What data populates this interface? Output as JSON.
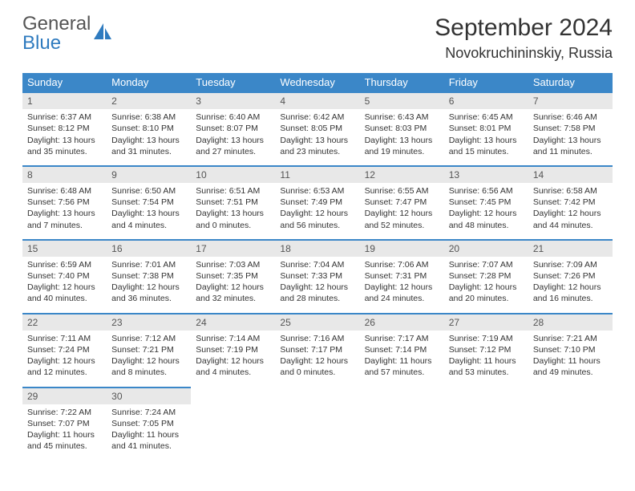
{
  "brand": {
    "line1": "General",
    "line2": "Blue"
  },
  "title": "September 2024",
  "location": "Novokruchininskiy, Russia",
  "colors": {
    "header_bg": "#3b87c8",
    "header_text": "#ffffff",
    "daynum_bg": "#e8e8e8",
    "rule": "#3b87c8",
    "brand_blue": "#2f7bbf"
  },
  "weekdays": [
    "Sunday",
    "Monday",
    "Tuesday",
    "Wednesday",
    "Thursday",
    "Friday",
    "Saturday"
  ],
  "weeks": [
    [
      {
        "n": "1",
        "sunrise": "Sunrise: 6:37 AM",
        "sunset": "Sunset: 8:12 PM",
        "day": "Daylight: 13 hours and 35 minutes."
      },
      {
        "n": "2",
        "sunrise": "Sunrise: 6:38 AM",
        "sunset": "Sunset: 8:10 PM",
        "day": "Daylight: 13 hours and 31 minutes."
      },
      {
        "n": "3",
        "sunrise": "Sunrise: 6:40 AM",
        "sunset": "Sunset: 8:07 PM",
        "day": "Daylight: 13 hours and 27 minutes."
      },
      {
        "n": "4",
        "sunrise": "Sunrise: 6:42 AM",
        "sunset": "Sunset: 8:05 PM",
        "day": "Daylight: 13 hours and 23 minutes."
      },
      {
        "n": "5",
        "sunrise": "Sunrise: 6:43 AM",
        "sunset": "Sunset: 8:03 PM",
        "day": "Daylight: 13 hours and 19 minutes."
      },
      {
        "n": "6",
        "sunrise": "Sunrise: 6:45 AM",
        "sunset": "Sunset: 8:01 PM",
        "day": "Daylight: 13 hours and 15 minutes."
      },
      {
        "n": "7",
        "sunrise": "Sunrise: 6:46 AM",
        "sunset": "Sunset: 7:58 PM",
        "day": "Daylight: 13 hours and 11 minutes."
      }
    ],
    [
      {
        "n": "8",
        "sunrise": "Sunrise: 6:48 AM",
        "sunset": "Sunset: 7:56 PM",
        "day": "Daylight: 13 hours and 7 minutes."
      },
      {
        "n": "9",
        "sunrise": "Sunrise: 6:50 AM",
        "sunset": "Sunset: 7:54 PM",
        "day": "Daylight: 13 hours and 4 minutes."
      },
      {
        "n": "10",
        "sunrise": "Sunrise: 6:51 AM",
        "sunset": "Sunset: 7:51 PM",
        "day": "Daylight: 13 hours and 0 minutes."
      },
      {
        "n": "11",
        "sunrise": "Sunrise: 6:53 AM",
        "sunset": "Sunset: 7:49 PM",
        "day": "Daylight: 12 hours and 56 minutes."
      },
      {
        "n": "12",
        "sunrise": "Sunrise: 6:55 AM",
        "sunset": "Sunset: 7:47 PM",
        "day": "Daylight: 12 hours and 52 minutes."
      },
      {
        "n": "13",
        "sunrise": "Sunrise: 6:56 AM",
        "sunset": "Sunset: 7:45 PM",
        "day": "Daylight: 12 hours and 48 minutes."
      },
      {
        "n": "14",
        "sunrise": "Sunrise: 6:58 AM",
        "sunset": "Sunset: 7:42 PM",
        "day": "Daylight: 12 hours and 44 minutes."
      }
    ],
    [
      {
        "n": "15",
        "sunrise": "Sunrise: 6:59 AM",
        "sunset": "Sunset: 7:40 PM",
        "day": "Daylight: 12 hours and 40 minutes."
      },
      {
        "n": "16",
        "sunrise": "Sunrise: 7:01 AM",
        "sunset": "Sunset: 7:38 PM",
        "day": "Daylight: 12 hours and 36 minutes."
      },
      {
        "n": "17",
        "sunrise": "Sunrise: 7:03 AM",
        "sunset": "Sunset: 7:35 PM",
        "day": "Daylight: 12 hours and 32 minutes."
      },
      {
        "n": "18",
        "sunrise": "Sunrise: 7:04 AM",
        "sunset": "Sunset: 7:33 PM",
        "day": "Daylight: 12 hours and 28 minutes."
      },
      {
        "n": "19",
        "sunrise": "Sunrise: 7:06 AM",
        "sunset": "Sunset: 7:31 PM",
        "day": "Daylight: 12 hours and 24 minutes."
      },
      {
        "n": "20",
        "sunrise": "Sunrise: 7:07 AM",
        "sunset": "Sunset: 7:28 PM",
        "day": "Daylight: 12 hours and 20 minutes."
      },
      {
        "n": "21",
        "sunrise": "Sunrise: 7:09 AM",
        "sunset": "Sunset: 7:26 PM",
        "day": "Daylight: 12 hours and 16 minutes."
      }
    ],
    [
      {
        "n": "22",
        "sunrise": "Sunrise: 7:11 AM",
        "sunset": "Sunset: 7:24 PM",
        "day": "Daylight: 12 hours and 12 minutes."
      },
      {
        "n": "23",
        "sunrise": "Sunrise: 7:12 AM",
        "sunset": "Sunset: 7:21 PM",
        "day": "Daylight: 12 hours and 8 minutes."
      },
      {
        "n": "24",
        "sunrise": "Sunrise: 7:14 AM",
        "sunset": "Sunset: 7:19 PM",
        "day": "Daylight: 12 hours and 4 minutes."
      },
      {
        "n": "25",
        "sunrise": "Sunrise: 7:16 AM",
        "sunset": "Sunset: 7:17 PM",
        "day": "Daylight: 12 hours and 0 minutes."
      },
      {
        "n": "26",
        "sunrise": "Sunrise: 7:17 AM",
        "sunset": "Sunset: 7:14 PM",
        "day": "Daylight: 11 hours and 57 minutes."
      },
      {
        "n": "27",
        "sunrise": "Sunrise: 7:19 AM",
        "sunset": "Sunset: 7:12 PM",
        "day": "Daylight: 11 hours and 53 minutes."
      },
      {
        "n": "28",
        "sunrise": "Sunrise: 7:21 AM",
        "sunset": "Sunset: 7:10 PM",
        "day": "Daylight: 11 hours and 49 minutes."
      }
    ],
    [
      {
        "n": "29",
        "sunrise": "Sunrise: 7:22 AM",
        "sunset": "Sunset: 7:07 PM",
        "day": "Daylight: 11 hours and 45 minutes."
      },
      {
        "n": "30",
        "sunrise": "Sunrise: 7:24 AM",
        "sunset": "Sunset: 7:05 PM",
        "day": "Daylight: 11 hours and 41 minutes."
      },
      null,
      null,
      null,
      null,
      null
    ]
  ]
}
